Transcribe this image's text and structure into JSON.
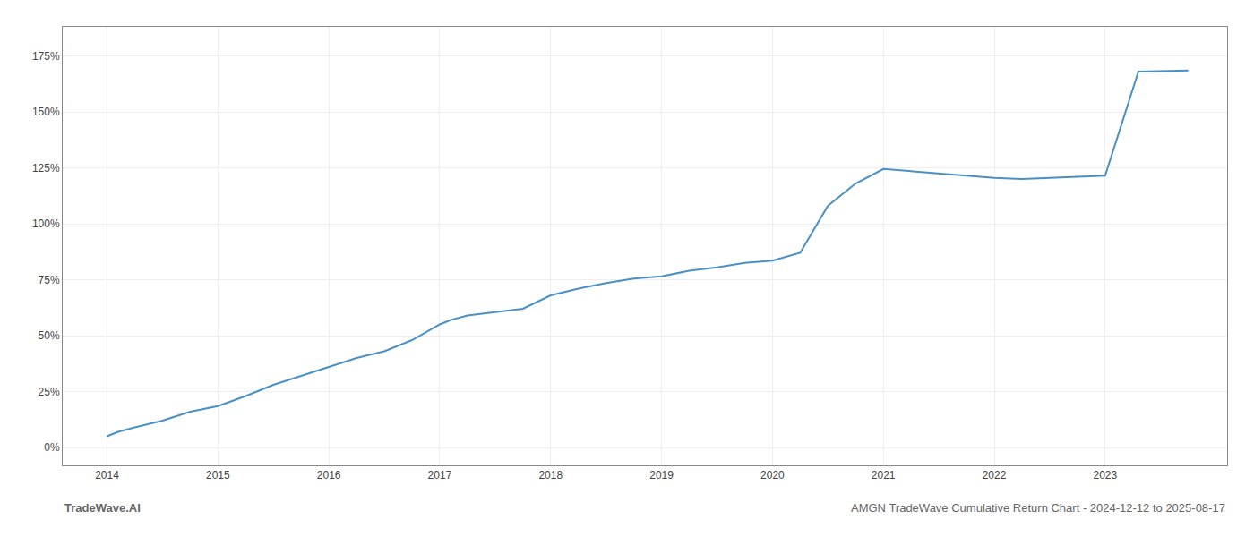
{
  "chart_data": {
    "type": "line",
    "x": [
      2014.0,
      2014.1,
      2014.25,
      2014.5,
      2014.75,
      2015.0,
      2015.25,
      2015.5,
      2015.75,
      2016.0,
      2016.25,
      2016.5,
      2016.75,
      2017.0,
      2017.1,
      2017.25,
      2017.5,
      2017.75,
      2018.0,
      2018.25,
      2018.5,
      2018.75,
      2019.0,
      2019.25,
      2019.5,
      2019.75,
      2020.0,
      2020.1,
      2020.25,
      2020.5,
      2020.75,
      2021.0,
      2021.25,
      2021.5,
      2021.75,
      2022.0,
      2022.25,
      2022.5,
      2022.75,
      2023.0,
      2023.3,
      2023.75
    ],
    "values": [
      5.0,
      7.0,
      9.0,
      12.0,
      16.0,
      18.5,
      23.0,
      28.0,
      32.0,
      36.0,
      40.0,
      43.0,
      48.0,
      55.0,
      57.0,
      59.0,
      60.5,
      62.0,
      68.0,
      71.0,
      73.5,
      75.5,
      76.5,
      79.0,
      80.5,
      82.5,
      83.5,
      85.0,
      87.0,
      108.0,
      118.0,
      124.5,
      123.5,
      122.5,
      121.5,
      120.5,
      120.0,
      120.5,
      121.0,
      121.5,
      168.0,
      168.5
    ],
    "color": "#4a90c4",
    "xlim": [
      2013.6,
      2024.1
    ],
    "xticks": [
      2014,
      2015,
      2016,
      2017,
      2018,
      2019,
      2020,
      2021,
      2022,
      2023
    ],
    "ylim": [
      -8,
      188
    ],
    "yticks": [
      {
        "value": 0,
        "label": "0%"
      },
      {
        "value": 25,
        "label": "25%"
      },
      {
        "value": 50,
        "label": "50%"
      },
      {
        "value": 75,
        "label": "75%"
      },
      {
        "value": 100,
        "label": "100%"
      },
      {
        "value": 125,
        "label": "125%"
      },
      {
        "value": 150,
        "label": "150%"
      },
      {
        "value": 175,
        "label": "175%"
      }
    ],
    "grid": true,
    "annotations": [
      "TradeWave.AI",
      "AMGN TradeWave Cumulative Return Chart - 2024-12-12 to 2025-08-17"
    ]
  }
}
